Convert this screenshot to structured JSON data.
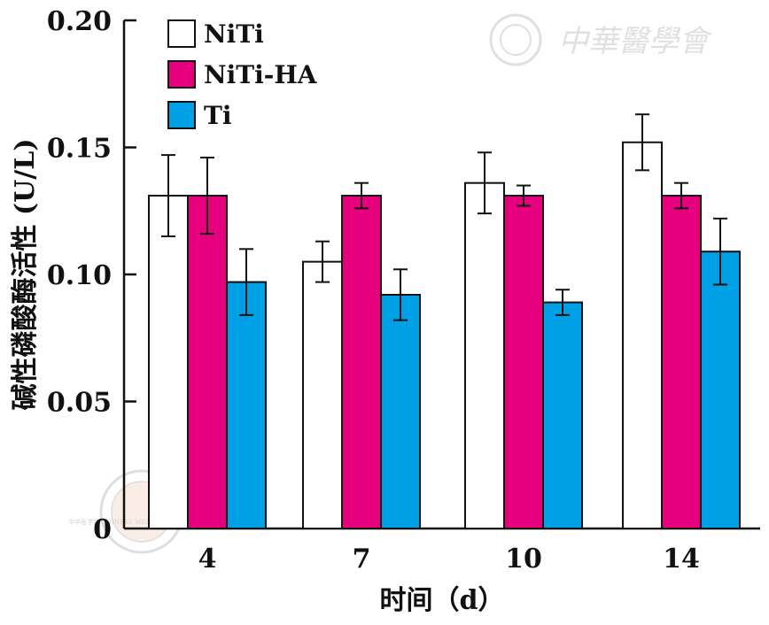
{
  "chart_data": {
    "type": "bar",
    "title": "",
    "xlabel": "时间（d）",
    "ylabel": "碱性磷酸酶活性 (U/L)",
    "categories": [
      "4",
      "7",
      "10",
      "14"
    ],
    "ylim": [
      0,
      0.2
    ],
    "yticks": [
      {
        "value": 0,
        "label": "0"
      },
      {
        "value": 0.05,
        "label": "0.05"
      },
      {
        "value": 0.1,
        "label": "0.10"
      },
      {
        "value": 0.15,
        "label": "0.15"
      },
      {
        "value": 0.2,
        "label": "0.20"
      }
    ],
    "series": [
      {
        "name": "NiTi",
        "color": "#ffffff",
        "values": [
          0.131,
          0.105,
          0.136,
          0.152
        ],
        "errors": [
          0.016,
          0.008,
          0.012,
          0.011
        ]
      },
      {
        "name": "NiTi-HA",
        "color": "#e6007e",
        "values": [
          0.131,
          0.131,
          0.131,
          0.131
        ],
        "errors": [
          0.015,
          0.005,
          0.004,
          0.005
        ]
      },
      {
        "name": "Ti",
        "color": "#00a0e6",
        "values": [
          0.097,
          0.092,
          0.089,
          0.109
        ],
        "errors": [
          0.013,
          0.01,
          0.005,
          0.013
        ]
      }
    ],
    "legend_position": "top-left",
    "grid": false
  },
  "watermarks": {
    "top_right_text": "中華醫學會",
    "bottom_left_seal_text": "中华医学会 CHINESE MEDICAL ASSOCIATION"
  }
}
